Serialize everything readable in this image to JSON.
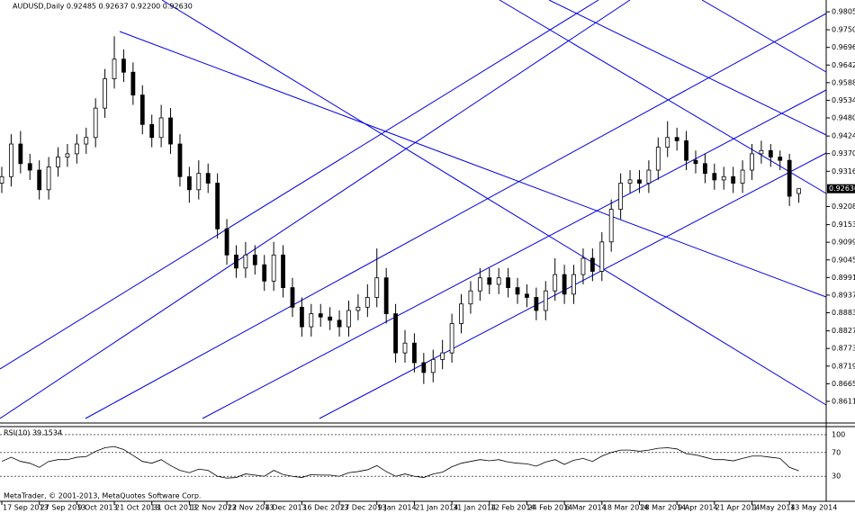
{
  "chart_data": [
    {
      "type": "candlestick",
      "title": "AUDUSD,Daily 0.92485 0.92637 0.92200 0.92630",
      "x": [
        0,
        2,
        4,
        6,
        8,
        10,
        12,
        14,
        16,
        18,
        20,
        22,
        24,
        26,
        28,
        30,
        32,
        34,
        36,
        38,
        40,
        42,
        44,
        46,
        48,
        50,
        52,
        54,
        56,
        58,
        60,
        62,
        64,
        66,
        68,
        70,
        72,
        74,
        76,
        78,
        80,
        82,
        84,
        86,
        88,
        90,
        92,
        94,
        96,
        98,
        100,
        102,
        104,
        106,
        108,
        110,
        112,
        114,
        116,
        118,
        120,
        122,
        124,
        126,
        128,
        130,
        132,
        134,
        136,
        138,
        140,
        142,
        144,
        146,
        148,
        150,
        152,
        154,
        156,
        158,
        160,
        162,
        164,
        166,
        168,
        170
      ],
      "open": [
        0.928,
        0.93,
        0.94,
        0.934,
        0.932,
        0.926,
        0.933,
        0.936,
        0.937,
        0.94,
        0.942,
        0.951,
        0.96,
        0.966,
        0.962,
        0.955,
        0.946,
        0.942,
        0.948,
        0.94,
        0.93,
        0.926,
        0.931,
        0.928,
        0.914,
        0.906,
        0.902,
        0.906,
        0.903,
        0.898,
        0.906,
        0.896,
        0.89,
        0.884,
        0.888,
        0.887,
        0.886,
        0.884,
        0.889,
        0.89,
        0.893,
        0.899,
        0.888,
        0.876,
        0.879,
        0.873,
        0.87,
        0.874,
        0.876,
        0.885,
        0.891,
        0.895,
        0.899,
        0.897,
        0.899,
        0.896,
        0.894,
        0.893,
        0.889,
        0.895,
        0.9,
        0.894,
        0.9,
        0.905,
        0.901,
        0.91,
        0.92,
        0.928,
        0.929,
        0.928,
        0.932,
        0.939,
        0.942,
        0.941,
        0.935,
        0.934,
        0.931,
        0.929,
        0.93,
        0.928,
        0.932,
        0.937,
        0.938,
        0.936,
        0.935,
        0.92485
      ],
      "high": [
        0.933,
        0.943,
        0.944,
        0.937,
        0.935,
        0.936,
        0.939,
        0.94,
        0.943,
        0.945,
        0.954,
        0.963,
        0.973,
        0.969,
        0.965,
        0.958,
        0.949,
        0.952,
        0.951,
        0.943,
        0.933,
        0.935,
        0.934,
        0.931,
        0.917,
        0.909,
        0.91,
        0.909,
        0.906,
        0.91,
        0.909,
        0.899,
        0.893,
        0.891,
        0.891,
        0.89,
        0.889,
        0.892,
        0.894,
        0.897,
        0.908,
        0.902,
        0.891,
        0.883,
        0.882,
        0.876,
        0.877,
        0.88,
        0.888,
        0.894,
        0.898,
        0.902,
        0.902,
        0.902,
        0.902,
        0.899,
        0.897,
        0.896,
        0.898,
        0.905,
        0.903,
        0.903,
        0.908,
        0.908,
        0.913,
        0.923,
        0.931,
        0.932,
        0.932,
        0.935,
        0.942,
        0.947,
        0.945,
        0.944,
        0.938,
        0.937,
        0.934,
        0.933,
        0.933,
        0.935,
        0.94,
        0.941,
        0.94,
        0.938,
        0.937,
        0.92637
      ],
      "low": [
        0.925,
        0.927,
        0.931,
        0.929,
        0.923,
        0.923,
        0.93,
        0.933,
        0.934,
        0.937,
        0.939,
        0.948,
        0.957,
        0.959,
        0.952,
        0.943,
        0.939,
        0.939,
        0.937,
        0.927,
        0.922,
        0.923,
        0.925,
        0.911,
        0.903,
        0.899,
        0.899,
        0.9,
        0.895,
        0.895,
        0.893,
        0.887,
        0.881,
        0.881,
        0.884,
        0.883,
        0.881,
        0.881,
        0.886,
        0.887,
        0.89,
        0.885,
        0.873,
        0.873,
        0.87,
        0.8665,
        0.867,
        0.871,
        0.873,
        0.882,
        0.888,
        0.892,
        0.894,
        0.894,
        0.893,
        0.891,
        0.89,
        0.886,
        0.886,
        0.892,
        0.891,
        0.891,
        0.897,
        0.898,
        0.898,
        0.907,
        0.917,
        0.925,
        0.925,
        0.925,
        0.929,
        0.936,
        0.938,
        0.932,
        0.931,
        0.928,
        0.926,
        0.926,
        0.925,
        0.925,
        0.929,
        0.934,
        0.933,
        0.932,
        0.921,
        0.922
      ],
      "close": [
        0.93,
        0.94,
        0.934,
        0.932,
        0.926,
        0.933,
        0.936,
        0.937,
        0.94,
        0.942,
        0.951,
        0.96,
        0.966,
        0.962,
        0.955,
        0.946,
        0.942,
        0.948,
        0.94,
        0.93,
        0.926,
        0.931,
        0.928,
        0.914,
        0.906,
        0.902,
        0.906,
        0.903,
        0.898,
        0.906,
        0.896,
        0.89,
        0.884,
        0.888,
        0.887,
        0.886,
        0.884,
        0.889,
        0.89,
        0.893,
        0.899,
        0.888,
        0.876,
        0.879,
        0.873,
        0.87,
        0.874,
        0.876,
        0.885,
        0.891,
        0.895,
        0.899,
        0.897,
        0.899,
        0.896,
        0.894,
        0.893,
        0.889,
        0.895,
        0.9,
        0.894,
        0.9,
        0.905,
        0.901,
        0.91,
        0.92,
        0.928,
        0.929,
        0.928,
        0.932,
        0.939,
        0.942,
        0.941,
        0.935,
        0.934,
        0.931,
        0.929,
        0.93,
        0.928,
        0.932,
        0.937,
        0.938,
        0.936,
        0.935,
        0.924,
        0.9263
      ],
      "color_up": "#ffffff",
      "color_down": "#000000",
      "xlim": [
        0,
        172
      ],
      "xticks": [
        {
          "value": 0,
          "label": "17 Sep 2013"
        },
        {
          "value": 8,
          "label": "27 Sep 2013"
        },
        {
          "value": 16,
          "label": "9 Oct 2013"
        },
        {
          "value": 24,
          "label": "21 Oct 2013"
        },
        {
          "value": 32,
          "label": "31 Oct 2013"
        },
        {
          "value": 40,
          "label": "12 Nov 2013"
        },
        {
          "value": 48,
          "label": "22 Nov 2013"
        },
        {
          "value": 56,
          "label": "4 Dec 2013"
        },
        {
          "value": 64,
          "label": "16 Dec 2013"
        },
        {
          "value": 72,
          "label": "27 Dec 2013"
        },
        {
          "value": 80,
          "label": "9 Jan 2014"
        },
        {
          "value": 88,
          "label": "21 Jan 2014"
        },
        {
          "value": 96,
          "label": "31 Jan 2014"
        },
        {
          "value": 104,
          "label": "12 Feb 2014"
        },
        {
          "value": 112,
          "label": "24 Feb 2014"
        },
        {
          "value": 120,
          "label": "6 Mar 2014"
        },
        {
          "value": 128,
          "label": "18 Mar 2014"
        },
        {
          "value": 136,
          "label": "28 Mar 2014"
        },
        {
          "value": 144,
          "label": "9 Apr 2014"
        },
        {
          "value": 152,
          "label": "21 Apr 2014"
        },
        {
          "value": 160,
          "label": "1 May 2014"
        },
        {
          "value": 168,
          "label": "13 May 2014"
        }
      ],
      "ylim": [
        0.8559,
        0.9833
      ],
      "yticks": [
        {
          "value": 0.9805,
          "label": "0.98050"
        },
        {
          "value": 0.975,
          "label": "0.97500"
        },
        {
          "value": 0.9696,
          "label": "0.96960"
        },
        {
          "value": 0.9642,
          "label": "0.96420"
        },
        {
          "value": 0.9588,
          "label": "0.95880"
        },
        {
          "value": 0.9534,
          "label": "0.95340"
        },
        {
          "value": 0.948,
          "label": "0.94800"
        },
        0.94245,
        0.93705,
        0.93165,
        0.92085,
        {
          "value": 0.9153,
          "label": "0.91530"
        },
        {
          "value": 0.9099,
          "label": "0.90990"
        },
        {
          "value": 0.9045,
          "label": "0.90450"
        },
        {
          "value": 0.8991,
          "label": "0.89910"
        },
        {
          "value": 0.8937,
          "label": "0.89370"
        },
        {
          "value": 0.8883,
          "label": "0.88830"
        },
        0.88275,
        0.87735,
        0.87195,
        0.86655,
        0.86115
      ],
      "last_price": {
        "value": 0.9263,
        "label": "0.92630"
      }
    },
    {
      "type": "line",
      "title": "RSI(10) 39.1534",
      "values": [
        55,
        62,
        55,
        52,
        45,
        55,
        58,
        58,
        62,
        63,
        72,
        78,
        80,
        75,
        65,
        55,
        52,
        58,
        48,
        40,
        36,
        42,
        40,
        30,
        27,
        28,
        34,
        32,
        30,
        40,
        33,
        30,
        28,
        33,
        32,
        32,
        30,
        36,
        38,
        41,
        48,
        38,
        30,
        34,
        30,
        28,
        34,
        37,
        46,
        52,
        55,
        58,
        56,
        58,
        54,
        52,
        51,
        47,
        54,
        58,
        50,
        57,
        60,
        55,
        64,
        70,
        74,
        74,
        72,
        74,
        77,
        78,
        76,
        68,
        66,
        62,
        58,
        58,
        56,
        60,
        64,
        64,
        62,
        60,
        45,
        39.1534
      ],
      "color": "#000000",
      "ylim": [
        -10.5,
        110.5
      ],
      "yticks": [
        100,
        70,
        30
      ]
    }
  ],
  "footer": "MetaTrader, © 2001-2013, MetaQuotes Software Corp."
}
